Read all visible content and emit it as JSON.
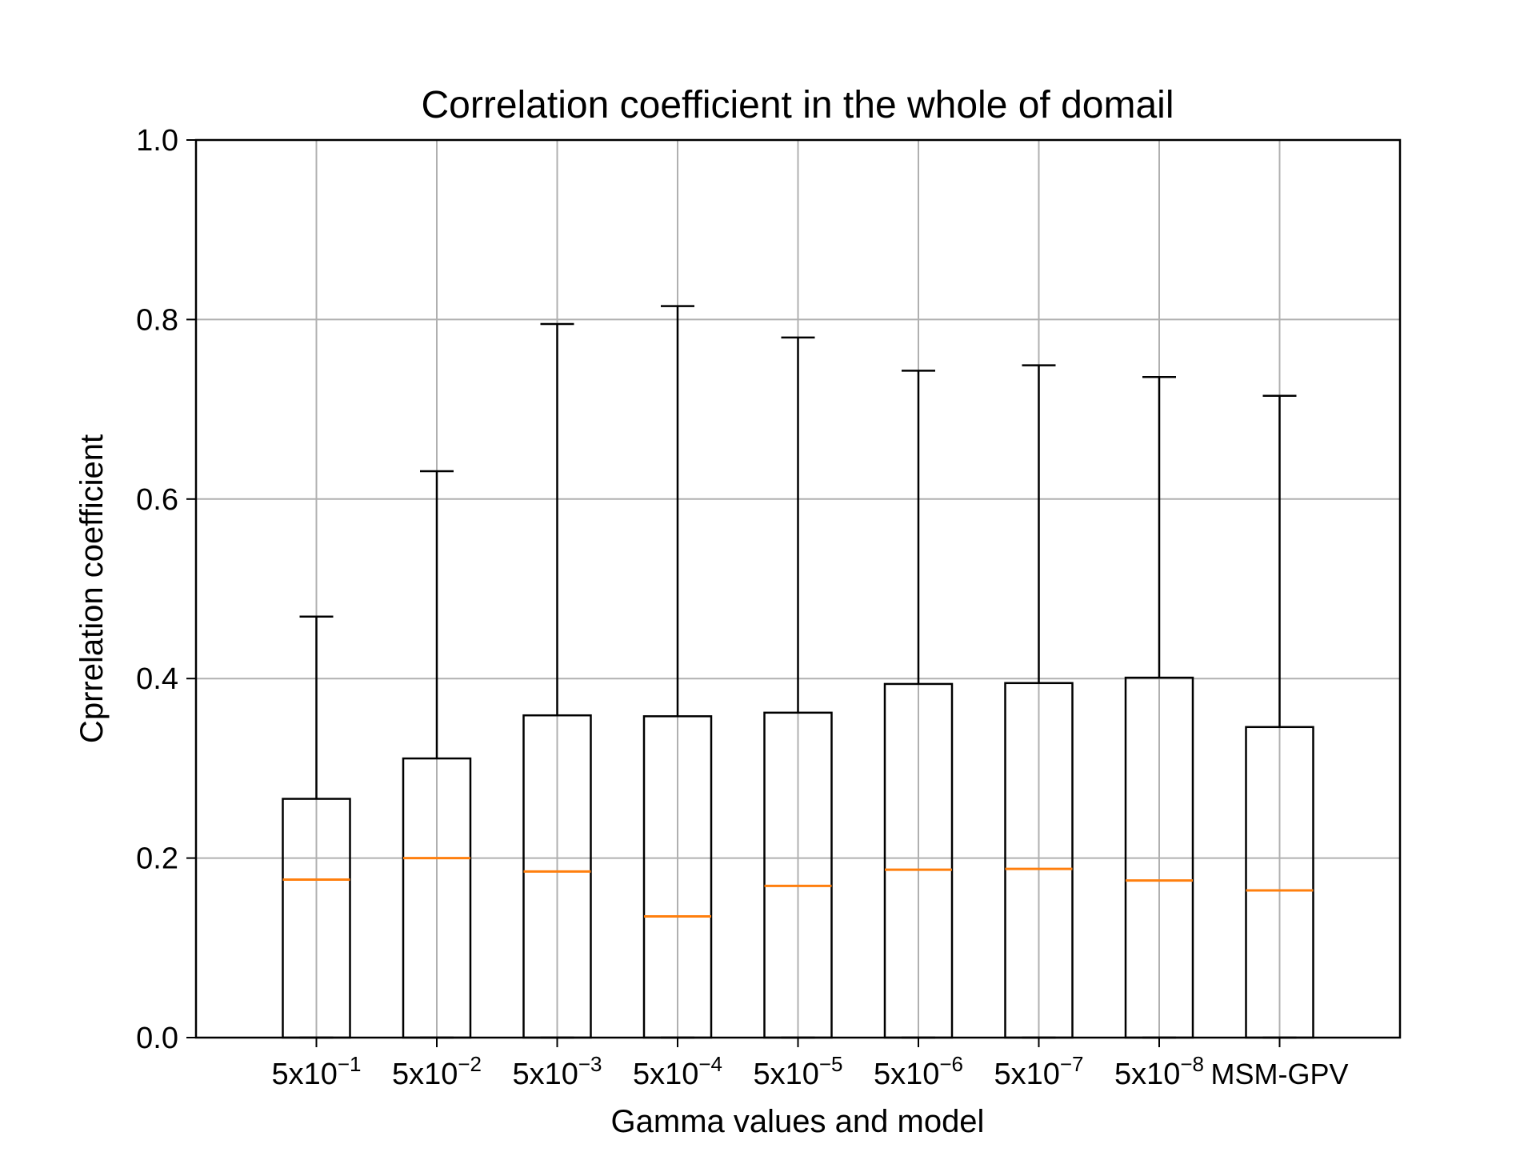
{
  "chart_data": {
    "type": "box",
    "title": "Correlation coefficient in the whole of domail",
    "xlabel": "Gamma values and model",
    "ylabel": "Cprrelation coefficient",
    "ylim": [
      0.0,
      1.0
    ],
    "yticks": [
      "0.0",
      "0.2",
      "0.4",
      "0.6",
      "0.8",
      "1.0"
    ],
    "grid": true,
    "colors": {
      "box": "#000000",
      "median": "#ff7f0e",
      "grid": "#b0b0b0"
    },
    "categories": [
      {
        "base": "5x10",
        "exp": "−1",
        "label": "5x10^−1"
      },
      {
        "base": "5x10",
        "exp": "−2",
        "label": "5x10^−2"
      },
      {
        "base": "5x10",
        "exp": "−3",
        "label": "5x10^−3"
      },
      {
        "base": "5x10",
        "exp": "−4",
        "label": "5x10^−4"
      },
      {
        "base": "5x10",
        "exp": "−5",
        "label": "5x10^−5"
      },
      {
        "base": "5x10",
        "exp": "−6",
        "label": "5x10^−6"
      },
      {
        "base": "5x10",
        "exp": "−7",
        "label": "5x10^−7"
      },
      {
        "base": "5x10",
        "exp": "−8",
        "label": "5x10^−8"
      },
      {
        "base": "MSM-GPV",
        "exp": "",
        "label": "MSM-GPV"
      }
    ],
    "boxes": [
      {
        "whisker_low": 0.0,
        "q1": 0.0,
        "median": 0.176,
        "q3": 0.266,
        "whisker_high": 0.469
      },
      {
        "whisker_low": 0.0,
        "q1": 0.0,
        "median": 0.2,
        "q3": 0.311,
        "whisker_high": 0.631
      },
      {
        "whisker_low": 0.0,
        "q1": 0.0,
        "median": 0.185,
        "q3": 0.359,
        "whisker_high": 0.795
      },
      {
        "whisker_low": 0.0,
        "q1": 0.0,
        "median": 0.135,
        "q3": 0.358,
        "whisker_high": 0.815
      },
      {
        "whisker_low": 0.0,
        "q1": 0.0,
        "median": 0.169,
        "q3": 0.362,
        "whisker_high": 0.78
      },
      {
        "whisker_low": 0.0,
        "q1": 0.0,
        "median": 0.187,
        "q3": 0.394,
        "whisker_high": 0.743
      },
      {
        "whisker_low": 0.0,
        "q1": 0.0,
        "median": 0.188,
        "q3": 0.395,
        "whisker_high": 0.749
      },
      {
        "whisker_low": 0.0,
        "q1": 0.0,
        "median": 0.175,
        "q3": 0.401,
        "whisker_high": 0.736
      },
      {
        "whisker_low": 0.0,
        "q1": 0.0,
        "median": 0.164,
        "q3": 0.346,
        "whisker_high": 0.715
      }
    ]
  }
}
